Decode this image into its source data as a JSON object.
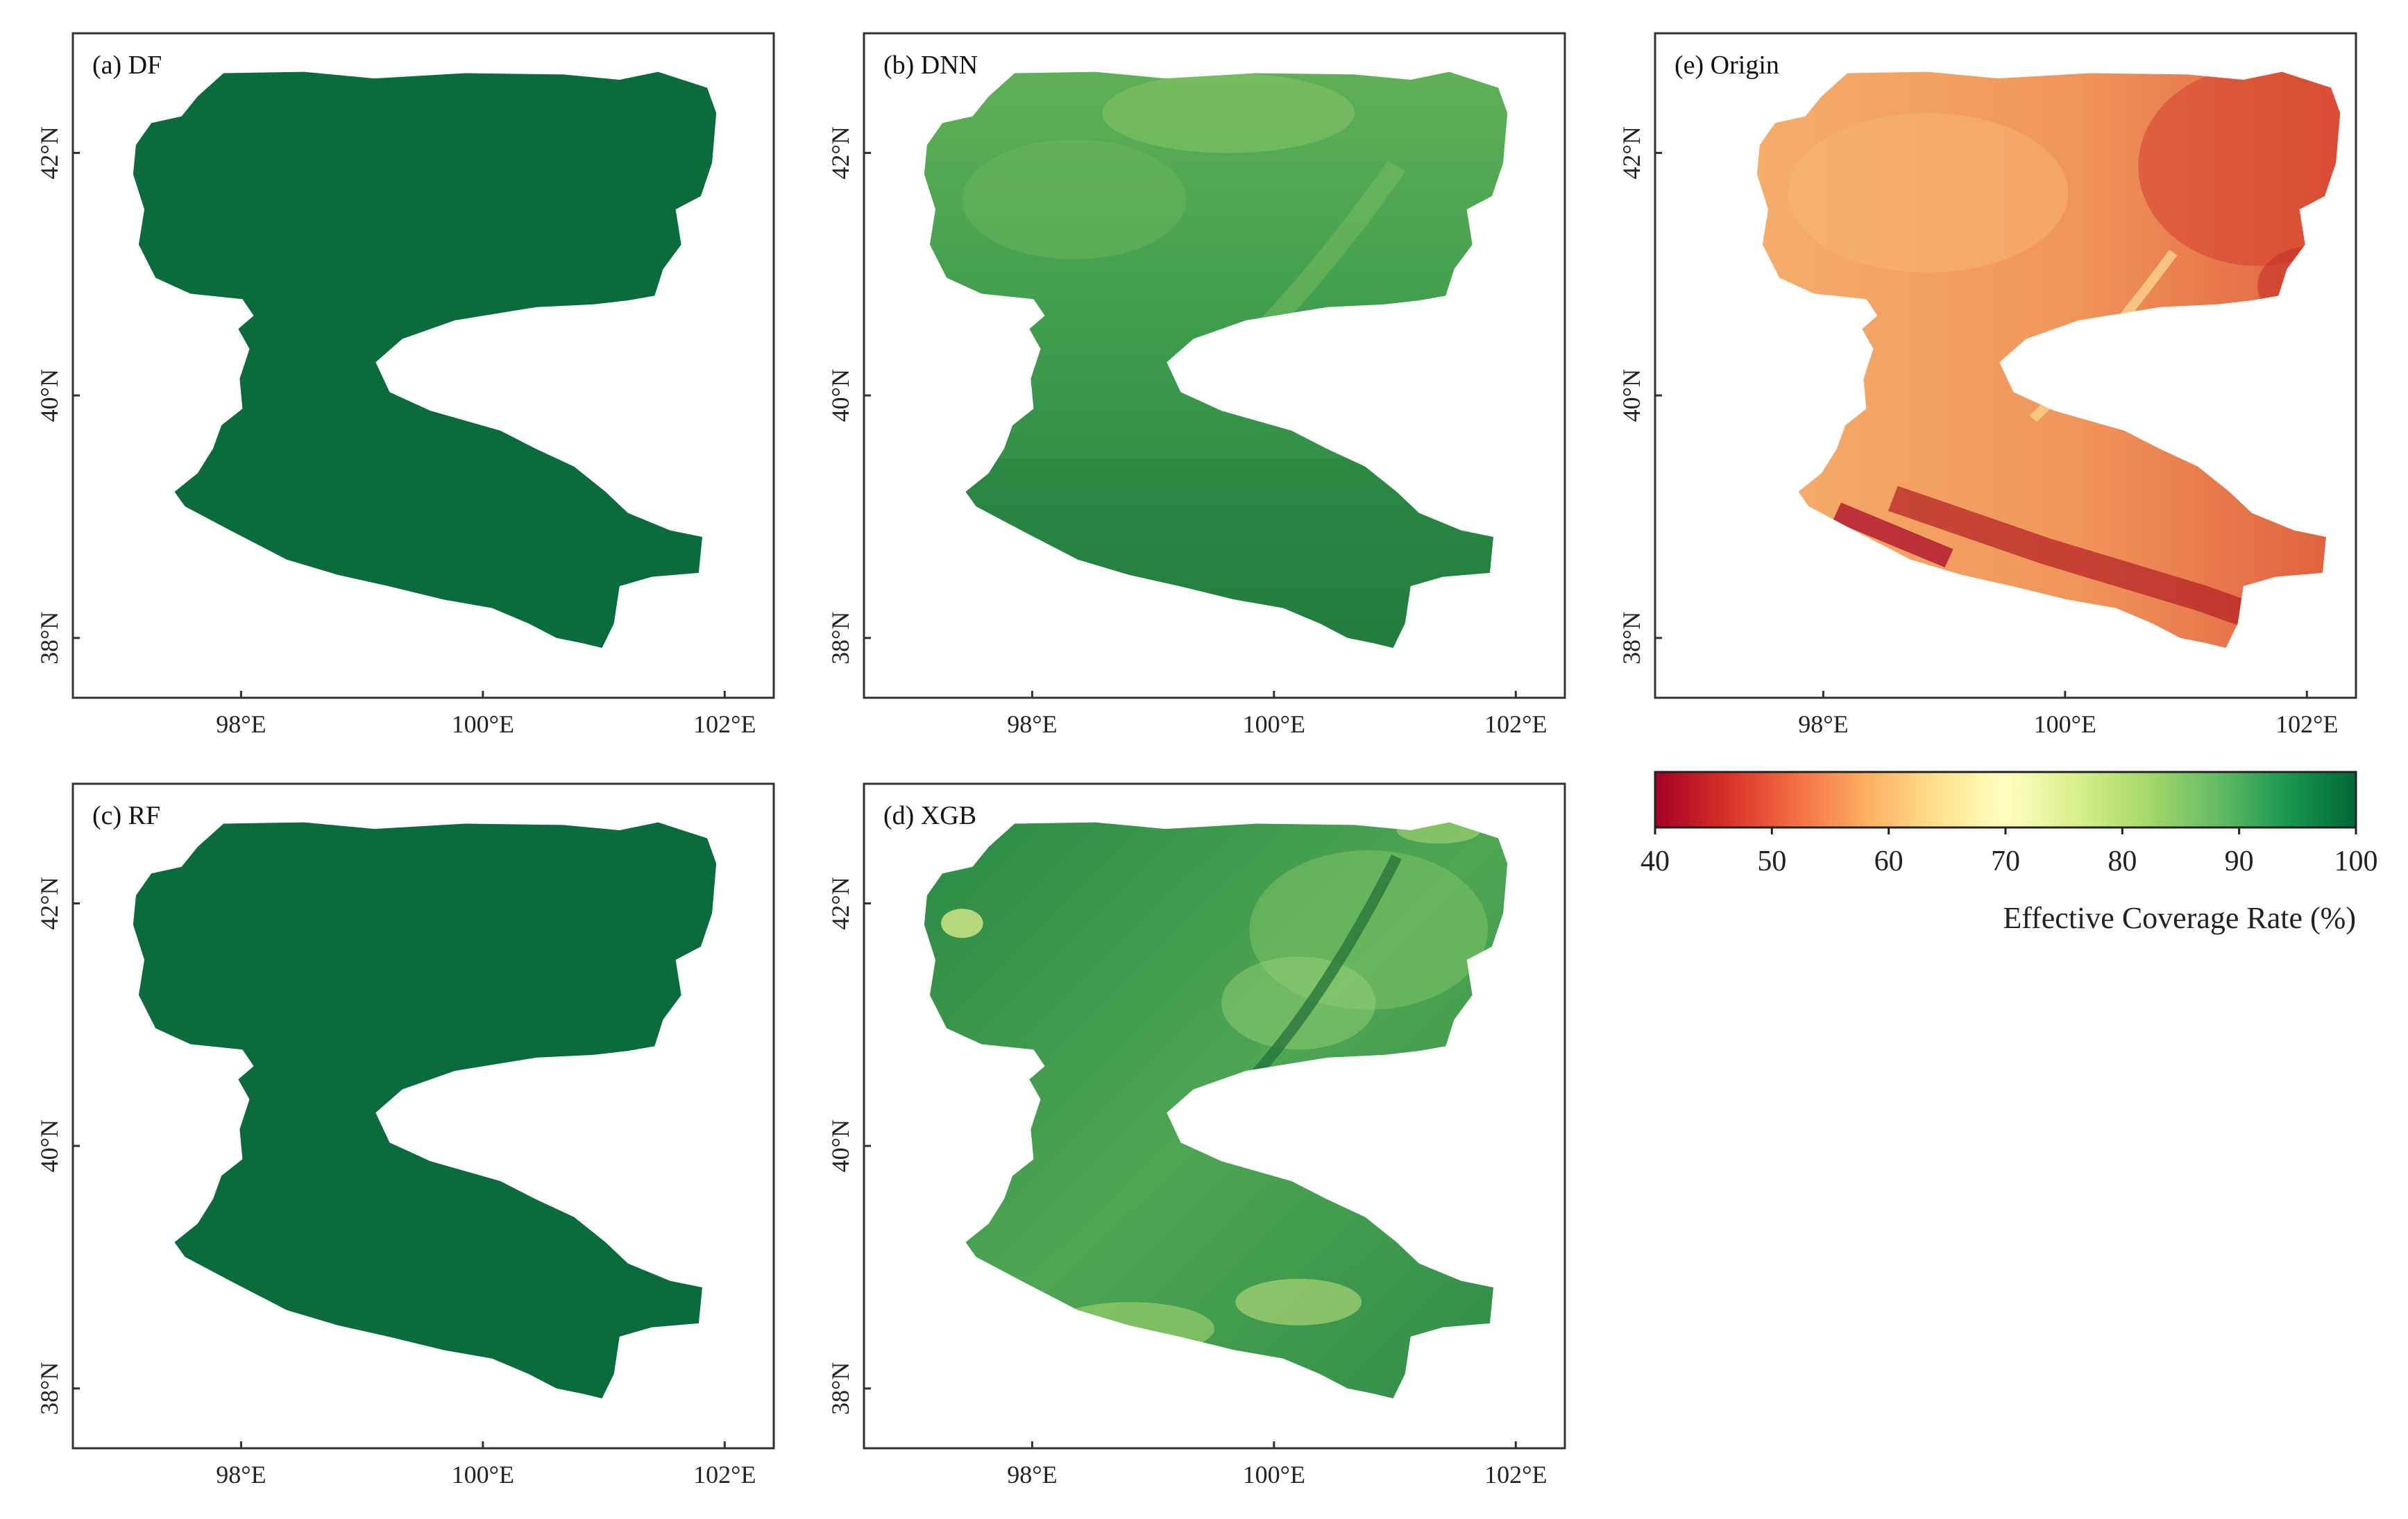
{
  "panels": [
    {
      "id": "a",
      "label": "(a) DF",
      "style": "uniform",
      "fill": "#0a6b3b"
    },
    {
      "id": "b",
      "label": "(b) DNN",
      "style": "dnn",
      "fill": "#3e9e4f"
    },
    {
      "id": "e",
      "label": "(e) Origin",
      "style": "origin",
      "fill": "#f19a5b"
    },
    {
      "id": "c",
      "label": "(c) RF",
      "style": "uniform",
      "fill": "#0a6b3b"
    },
    {
      "id": "d",
      "label": "(d) XGB",
      "style": "xgb",
      "fill": "#2c8a44"
    }
  ],
  "axes": {
    "lat_ticks": [
      "42°N",
      "40°N",
      "38°N"
    ],
    "lon_ticks": [
      "98°E",
      "100°E",
      "102°E"
    ]
  },
  "colorbar": {
    "ticks": [
      "40",
      "50",
      "60",
      "70",
      "80",
      "90",
      "100"
    ],
    "title": "Effective Coverage Rate (%)",
    "range": [
      40,
      100
    ],
    "colors": [
      "#a50026",
      "#d73027",
      "#f46d43",
      "#fdae61",
      "#fee08b",
      "#ffffbf",
      "#d9ef8b",
      "#a6d96a",
      "#66bd63",
      "#1a9850",
      "#006837"
    ]
  }
}
